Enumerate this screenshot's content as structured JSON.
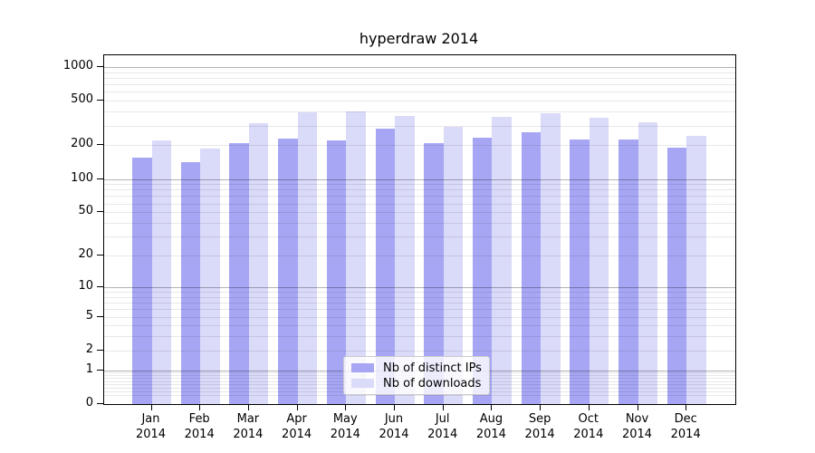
{
  "title": "hyperdraw 2014",
  "chart_data": {
    "type": "bar",
    "title": "hyperdraw 2014",
    "categories": [
      "Jan",
      "Feb",
      "Mar",
      "Apr",
      "May",
      "Jun",
      "Jul",
      "Aug",
      "Sep",
      "Oct",
      "Nov",
      "Dec"
    ],
    "x_year_label": "2014",
    "series": [
      {
        "name": "Nb of distinct IPs",
        "color": "#a6a6f4",
        "values": [
          156,
          141,
          209,
          230,
          221,
          282,
          209,
          234,
          262,
          226,
          226,
          191
        ]
      },
      {
        "name": "Nb of downloads",
        "color": "#dadaf9",
        "values": [
          221,
          187,
          315,
          394,
          401,
          366,
          293,
          359,
          388,
          353,
          321,
          243
        ]
      }
    ],
    "yscale": "log1p",
    "ytick_values": [
      0,
      1,
      2,
      5,
      10,
      20,
      50,
      100,
      200,
      500,
      1000
    ],
    "ytick_labels": [
      "0",
      "1",
      "2",
      "5",
      "10",
      "20",
      "50",
      "100",
      "200",
      "500",
      "1000"
    ],
    "ylim": [
      0,
      1280
    ],
    "grid": "both",
    "legend_position": "lower center"
  },
  "legend": {
    "items": [
      {
        "label": "Nb of distinct IPs"
      },
      {
        "label": "Nb of downloads"
      }
    ]
  }
}
